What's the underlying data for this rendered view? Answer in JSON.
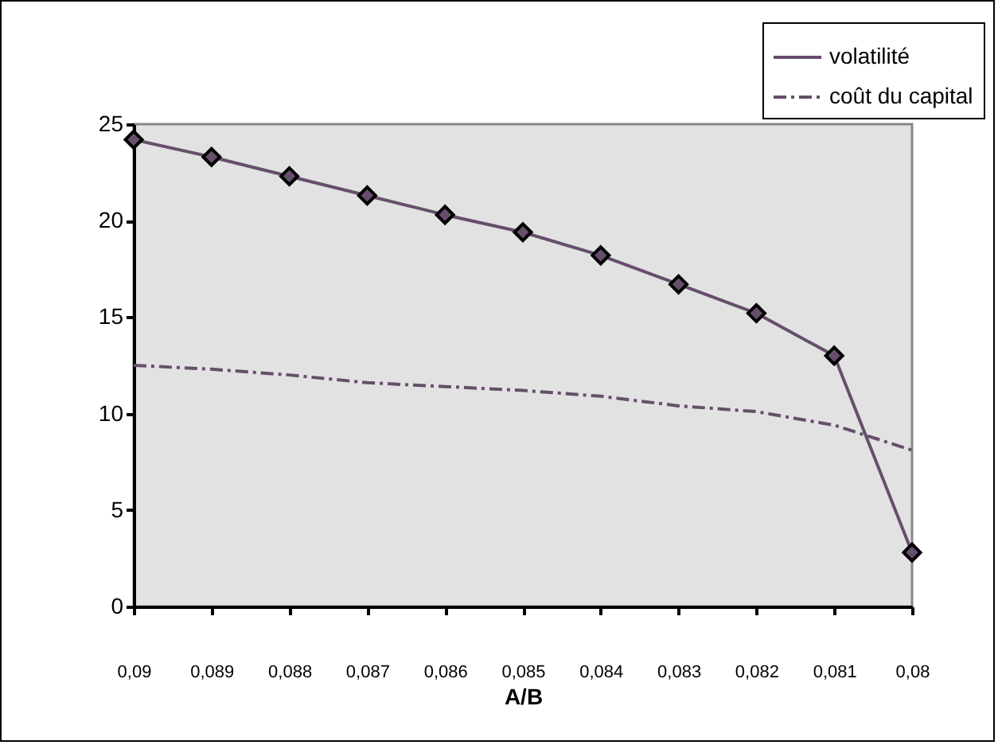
{
  "chart_data": {
    "type": "line",
    "xlabel": "A/B",
    "categories": [
      "0,09",
      "0,089",
      "0,088",
      "0,087",
      "0,086",
      "0,085",
      "0,084",
      "0,083",
      "0,082",
      "0,081",
      "0,08"
    ],
    "series": [
      {
        "name": "volatilité",
        "color": "#664f6b",
        "marker": "diamond",
        "line_style": "solid",
        "values": [
          24.2,
          23.3,
          22.3,
          21.3,
          20.3,
          19.4,
          18.2,
          16.7,
          15.2,
          13.0,
          2.8
        ]
      },
      {
        "name": "coût du capital",
        "color": "#664f6b",
        "marker": "none",
        "line_style": "dashed",
        "values": [
          12.5,
          12.3,
          12.0,
          11.6,
          11.4,
          11.2,
          10.9,
          10.4,
          10.1,
          9.4,
          8.1
        ]
      }
    ],
    "ylim": [
      0,
      25
    ],
    "yticks": [
      0,
      5,
      10,
      15,
      20,
      25
    ],
    "grid": false,
    "legend": "top right"
  }
}
